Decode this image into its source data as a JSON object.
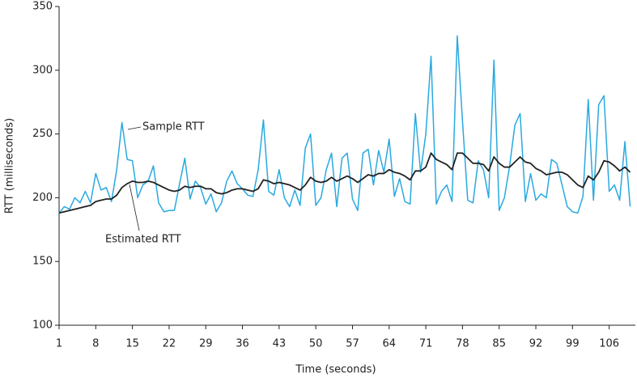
{
  "chart_data": {
    "type": "line",
    "x_label": "Time (seconds)",
    "y_label": "RTT (milliseconds)",
    "x": [
      1,
      2,
      3,
      4,
      5,
      6,
      7,
      8,
      9,
      10,
      11,
      12,
      13,
      14,
      15,
      16,
      17,
      18,
      19,
      20,
      21,
      22,
      23,
      24,
      25,
      26,
      27,
      28,
      29,
      30,
      31,
      32,
      33,
      34,
      35,
      36,
      37,
      38,
      39,
      40,
      41,
      42,
      43,
      44,
      45,
      46,
      47,
      48,
      49,
      50,
      51,
      52,
      53,
      54,
      55,
      56,
      57,
      58,
      59,
      60,
      61,
      62,
      63,
      64,
      65,
      66,
      67,
      68,
      69,
      70,
      71,
      72,
      73,
      74,
      75,
      76,
      77,
      78,
      79,
      80,
      81,
      82,
      83,
      84,
      85,
      86,
      87,
      88,
      89,
      90,
      91,
      92,
      93,
      94,
      95,
      96,
      97,
      98,
      99,
      100,
      101,
      102,
      103,
      104,
      105,
      106,
      107,
      108,
      109,
      110
    ],
    "series": [
      {
        "name": "Sample RTT",
        "color": "#29a9e0",
        "values": [
          188,
          193,
          191,
          200,
          196,
          205,
          196,
          219,
          206,
          208,
          197,
          222,
          259,
          230,
          229,
          200,
          210,
          213,
          225,
          196,
          189,
          190,
          190,
          211,
          231,
          199,
          213,
          208,
          195,
          203,
          189,
          196,
          213,
          221,
          211,
          207,
          202,
          201,
          222,
          261,
          205,
          202,
          222,
          200,
          193,
          206,
          194,
          239,
          250,
          194,
          200,
          222,
          235,
          193,
          231,
          235,
          199,
          190,
          235,
          238,
          210,
          237,
          220,
          246,
          201,
          215,
          197,
          195,
          266,
          220,
          250,
          311,
          195,
          205,
          210,
          197,
          327,
          260,
          198,
          196,
          229,
          222,
          200,
          308,
          190,
          200,
          225,
          257,
          266,
          197,
          219,
          198,
          203,
          200,
          230,
          227,
          210,
          193,
          189,
          188,
          201,
          277,
          198,
          273,
          280,
          205,
          210,
          198,
          244,
          193
        ]
      },
      {
        "name": "Estimated RTT",
        "color": "#222222",
        "values": [
          188,
          189,
          190,
          191,
          192,
          193,
          194,
          197,
          198,
          199,
          199,
          202,
          208,
          211,
          213,
          212,
          212,
          213,
          212,
          210,
          208,
          206,
          205,
          206,
          209,
          208,
          209,
          209,
          207,
          207,
          204,
          203,
          204,
          206,
          207,
          207,
          206,
          205,
          207,
          214,
          213,
          211,
          212,
          211,
          210,
          208,
          206,
          210,
          216,
          213,
          212,
          213,
          216,
          213,
          215,
          217,
          215,
          212,
          215,
          218,
          217,
          219,
          219,
          222,
          220,
          219,
          217,
          214,
          221,
          221,
          224,
          235,
          230,
          228,
          226,
          222,
          235,
          235,
          231,
          227,
          227,
          226,
          221,
          232,
          227,
          224,
          224,
          228,
          232,
          228,
          227,
          223,
          221,
          218,
          219,
          220,
          220,
          218,
          214,
          210,
          208,
          217,
          214,
          220,
          229,
          228,
          225,
          221,
          224,
          220
        ]
      }
    ],
    "xlim": [
      1,
      111
    ],
    "xticks": [
      1,
      8,
      15,
      22,
      29,
      36,
      43,
      50,
      57,
      64,
      71,
      78,
      85,
      92,
      99,
      106
    ],
    "ylim": [
      100,
      350
    ],
    "yticks": [
      100,
      150,
      200,
      250,
      300,
      350
    ],
    "grid": false
  }
}
